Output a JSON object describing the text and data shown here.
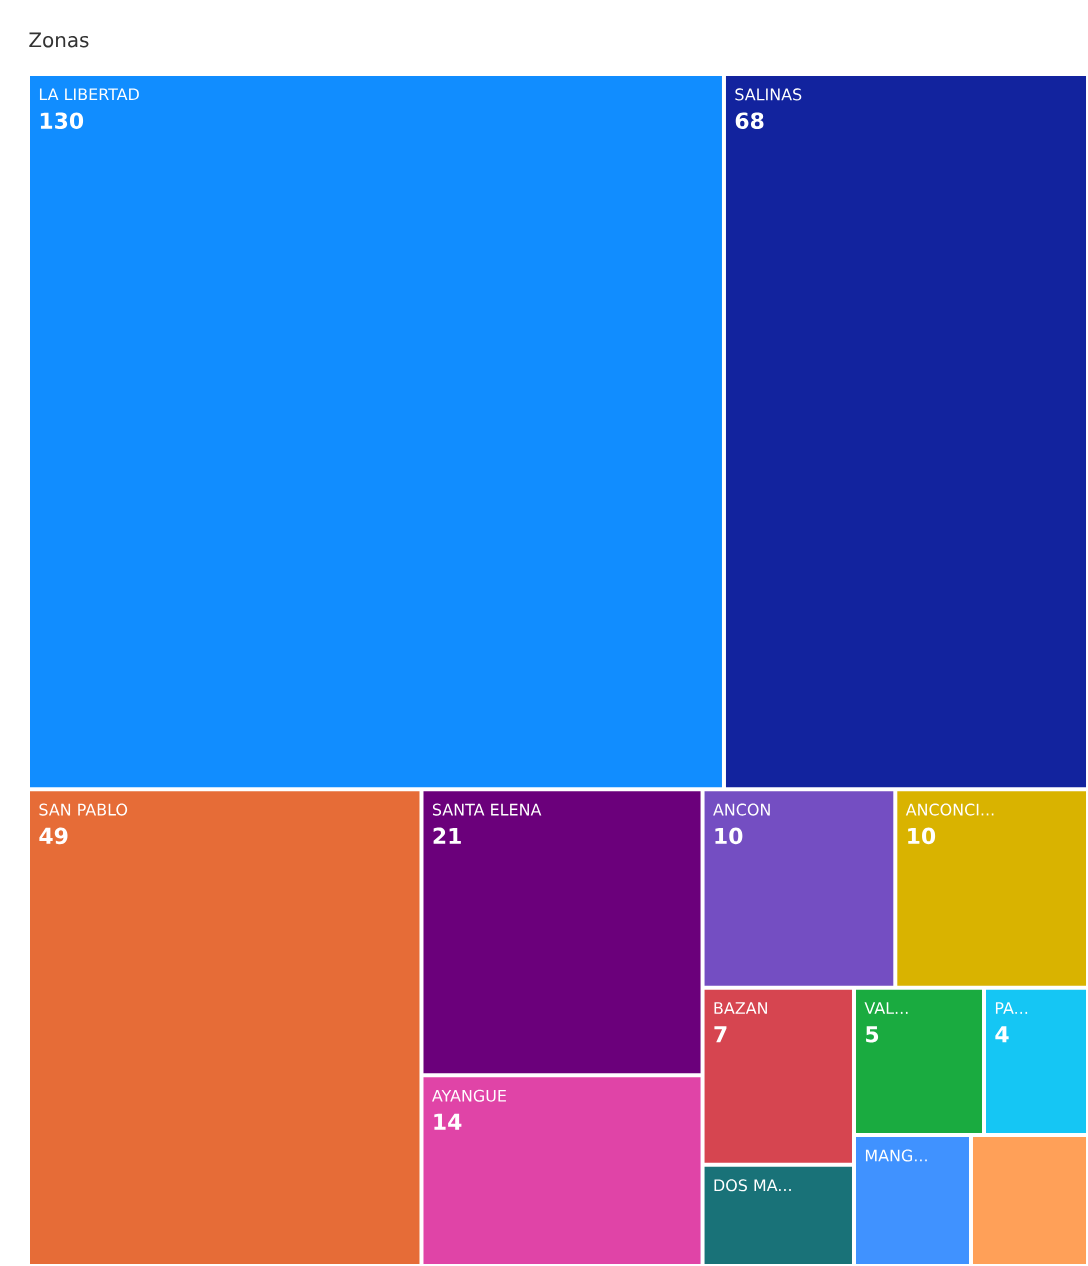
{
  "chart_data": {
    "type": "other",
    "title": "Zonas",
    "categories": [
      "LA LIBERTAD",
      "SALINAS",
      "SAN PABLO",
      "SANTA ELENA",
      "AYANGUE",
      "ANCON",
      "ANCONCI...",
      "BAZAN",
      "DOS MA...",
      "VAL...",
      "PA...",
      "MANG...",
      null
    ],
    "values": [
      130,
      68,
      49,
      21,
      14,
      10,
      10,
      7,
      null,
      5,
      4,
      null,
      null
    ],
    "data_labels": true,
    "colors": [
      "#118dff",
      "#12239e",
      "#e66c37",
      "#6b007b",
      "#e044a7",
      "#744ec2",
      "#d9b300",
      "#d64550",
      "#197278",
      "#1aab40",
      "#15c6f4",
      "#4092ff",
      "#ffa058"
    ]
  }
}
